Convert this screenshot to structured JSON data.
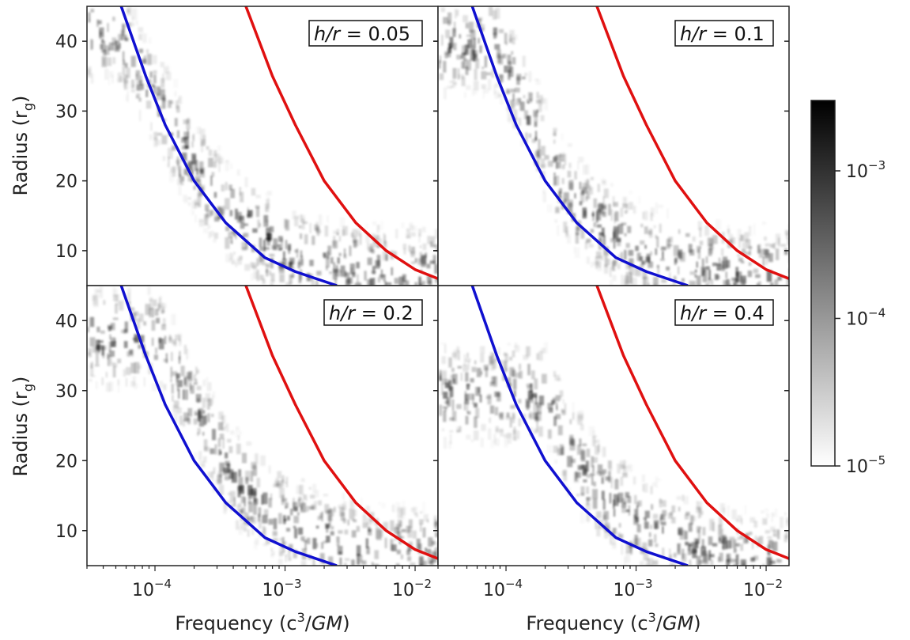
{
  "chart_data": [
    {
      "type": "heatmap",
      "panel": "top-left",
      "annotation": {
        "var": "h/r",
        "eq": " = ",
        "val": "0.05"
      },
      "xlabel": "",
      "ylabel": "Radius (r_g)",
      "xscale": "log",
      "xlim": [
        3e-05,
        0.015
      ],
      "ylim": [
        5,
        45
      ],
      "xticks": [
        "10^-4",
        "10^-3",
        "10^-2"
      ],
      "yticks": [
        10,
        20,
        30,
        40
      ],
      "series": [
        {
          "color": "#1010d0",
          "points": [
            [
              5.5e-05,
              45
            ],
            [
              8.5e-05,
              35
            ],
            [
              0.00012,
              28
            ],
            [
              0.0002,
              20
            ],
            [
              0.00035,
              14
            ],
            [
              0.0007,
              9
            ],
            [
              0.0012,
              7
            ],
            [
              0.0025,
              5
            ]
          ]
        },
        {
          "color": "#e01010",
          "points": [
            [
              0.0005,
              45
            ],
            [
              0.0008,
              35
            ],
            [
              0.0012,
              28
            ],
            [
              0.002,
              20
            ],
            [
              0.0035,
              14
            ],
            [
              0.006,
              10
            ],
            [
              0.01,
              7.3
            ],
            [
              0.015,
              6
            ]
          ]
        }
      ],
      "intensity_ridge": [
        [
          5e-05,
          42
        ],
        [
          0.0001,
          32
        ],
        [
          0.0002,
          22
        ],
        [
          0.0004,
          15
        ],
        [
          0.001,
          10
        ],
        [
          0.004,
          7
        ]
      ]
    },
    {
      "type": "heatmap",
      "panel": "top-right",
      "annotation": {
        "var": "h/r",
        "eq": " = ",
        "val": "0.1"
      },
      "xlabel": "",
      "ylabel": "",
      "xscale": "log",
      "xlim": [
        3e-05,
        0.015
      ],
      "ylim": [
        5,
        45
      ],
      "xticks": [
        "10^-4",
        "10^-3",
        "10^-2"
      ],
      "yticks": [
        10,
        20,
        30,
        40
      ],
      "series": [
        {
          "color": "#1010d0",
          "points": [
            [
              5.5e-05,
              45
            ],
            [
              8.5e-05,
              35
            ],
            [
              0.00012,
              28
            ],
            [
              0.0002,
              20
            ],
            [
              0.00035,
              14
            ],
            [
              0.0007,
              9
            ],
            [
              0.0012,
              7
            ],
            [
              0.0025,
              5
            ]
          ]
        },
        {
          "color": "#e01010",
          "points": [
            [
              0.0005,
              45
            ],
            [
              0.0008,
              35
            ],
            [
              0.0012,
              28
            ],
            [
              0.002,
              20
            ],
            [
              0.0035,
              14
            ],
            [
              0.006,
              10
            ],
            [
              0.01,
              7.3
            ],
            [
              0.015,
              6
            ]
          ]
        }
      ],
      "intensity_ridge": [
        [
          8e-05,
          40
        ],
        [
          0.00015,
          30
        ],
        [
          0.00025,
          20
        ],
        [
          0.0005,
          14
        ],
        [
          0.0012,
          10
        ],
        [
          0.005,
          7
        ]
      ]
    },
    {
      "type": "heatmap",
      "panel": "bottom-left",
      "annotation": {
        "var": "h/r",
        "eq": " = ",
        "val": "0.2"
      },
      "xlabel": "Frequency (c^3/GM)",
      "ylabel": "Radius (r_g)",
      "xscale": "log",
      "xlim": [
        3e-05,
        0.015
      ],
      "ylim": [
        5,
        45
      ],
      "xticks": [
        "10^-4",
        "10^-3",
        "10^-2"
      ],
      "yticks": [
        10,
        20,
        30,
        40
      ],
      "series": [
        {
          "color": "#1010d0",
          "points": [
            [
              5.5e-05,
              45
            ],
            [
              8.5e-05,
              35
            ],
            [
              0.00012,
              28
            ],
            [
              0.0002,
              20
            ],
            [
              0.00035,
              14
            ],
            [
              0.0007,
              9
            ],
            [
              0.0012,
              7
            ],
            [
              0.0025,
              5
            ]
          ]
        },
        {
          "color": "#e01010",
          "points": [
            [
              0.0005,
              45
            ],
            [
              0.0008,
              35
            ],
            [
              0.0012,
              28
            ],
            [
              0.002,
              20
            ],
            [
              0.0035,
              14
            ],
            [
              0.006,
              10
            ],
            [
              0.01,
              7.3
            ],
            [
              0.015,
              6
            ]
          ]
        }
      ],
      "intensity_ridge": [
        [
          0.0001,
          38
        ],
        [
          0.0002,
          28
        ],
        [
          0.0004,
          18
        ],
        [
          0.0008,
          13
        ],
        [
          0.002,
          9
        ],
        [
          0.006,
          7
        ]
      ]
    },
    {
      "type": "heatmap",
      "panel": "bottom-right",
      "annotation": {
        "var": "h/r",
        "eq": " = ",
        "val": "0.4"
      },
      "xlabel": "Frequency (c^3/GM)",
      "ylabel": "",
      "xscale": "log",
      "xlim": [
        3e-05,
        0.015
      ],
      "ylim": [
        5,
        45
      ],
      "xticks": [
        "10^-4",
        "10^-3",
        "10^-2"
      ],
      "yticks": [
        10,
        20,
        30,
        40
      ],
      "series": [
        {
          "color": "#1010d0",
          "points": [
            [
              5.5e-05,
              45
            ],
            [
              8.5e-05,
              35
            ],
            [
              0.00012,
              28
            ],
            [
              0.0002,
              20
            ],
            [
              0.00035,
              14
            ],
            [
              0.0007,
              9
            ],
            [
              0.0012,
              7
            ],
            [
              0.0025,
              5
            ]
          ]
        },
        {
          "color": "#e01010",
          "points": [
            [
              0.0005,
              45
            ],
            [
              0.0008,
              35
            ],
            [
              0.0012,
              28
            ],
            [
              0.002,
              20
            ],
            [
              0.0035,
              14
            ],
            [
              0.006,
              10
            ],
            [
              0.01,
              7.3
            ],
            [
              0.015,
              6
            ]
          ]
        }
      ],
      "intensity_ridge": [
        [
          0.0002,
          30
        ],
        [
          0.0003,
          22
        ],
        [
          0.0006,
          15
        ],
        [
          0.0012,
          11
        ],
        [
          0.003,
          8
        ],
        [
          0.008,
          6
        ]
      ]
    }
  ],
  "labels": {
    "ylabel_text": "Radius (r",
    "ylabel_sub": "g",
    "ylabel_close": ")",
    "xlabel_pre": "Frequency (c",
    "xlabel_sup": "3",
    "xlabel_slash": "/",
    "xlabel_gm": "GM",
    "xlabel_close": ")",
    "tick_base": "10",
    "xtick_exps": [
      "−4",
      "−3",
      "−2"
    ],
    "ytick_values": [
      "10",
      "20",
      "30",
      "40"
    ]
  },
  "colorbar": {
    "scale": "log",
    "range": [
      1e-05,
      0.003
    ],
    "ticks": [
      {
        "base": "10",
        "exp": "−3"
      },
      {
        "base": "10",
        "exp": "−4"
      },
      {
        "base": "10",
        "exp": "−5"
      }
    ],
    "color_low": "#ffffff",
    "color_high": "#000000"
  }
}
